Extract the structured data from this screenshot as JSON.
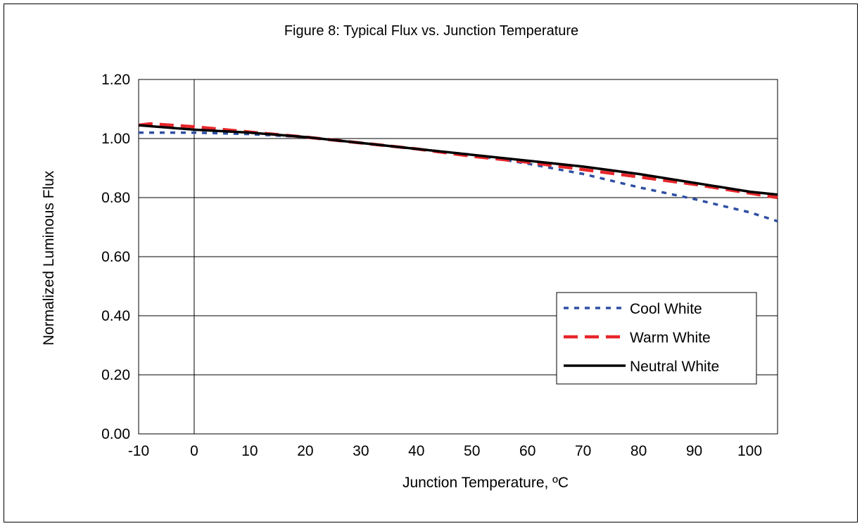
{
  "chart_data": {
    "type": "line",
    "title": "Figure 8:  Typical Flux vs. Junction Temperature",
    "xlabel": "Junction Temperature, ºC",
    "ylabel": "Normalized Luminous Flux",
    "xlim": [
      -10,
      105
    ],
    "ylim": [
      0,
      1.2
    ],
    "x_ticks": [
      "-10",
      "0",
      "10",
      "20",
      "30",
      "40",
      "50",
      "60",
      "70",
      "80",
      "90",
      "100"
    ],
    "y_ticks": [
      "0.00",
      "0.20",
      "0.40",
      "0.60",
      "0.80",
      "1.00",
      "1.20"
    ],
    "grid": "horizontal",
    "legend_position": "right",
    "series": [
      {
        "name": "Cool White",
        "color": "#2e4fa3",
        "style": "dotted",
        "x": [
          -10,
          0,
          10,
          20,
          30,
          40,
          50,
          60,
          70,
          80,
          90,
          100,
          105
        ],
        "y": [
          1.02,
          1.02,
          1.015,
          1.005,
          0.985,
          0.965,
          0.945,
          0.915,
          0.88,
          0.835,
          0.795,
          0.75,
          0.72
        ]
      },
      {
        "name": "Warm White",
        "color": "#e8262a",
        "style": "dashed",
        "x": [
          -10,
          -8,
          0,
          10,
          20,
          30,
          40,
          50,
          60,
          70,
          80,
          90,
          100,
          105
        ],
        "y": [
          1.045,
          1.05,
          1.04,
          1.022,
          1.005,
          0.985,
          0.965,
          0.94,
          0.92,
          0.895,
          0.87,
          0.845,
          0.815,
          0.8
        ]
      },
      {
        "name": "Neutral White",
        "color": "#000000",
        "style": "solid",
        "x": [
          -10,
          0,
          10,
          20,
          30,
          40,
          50,
          60,
          70,
          80,
          90,
          100,
          105
        ],
        "y": [
          1.045,
          1.03,
          1.02,
          1.005,
          0.985,
          0.965,
          0.945,
          0.925,
          0.905,
          0.88,
          0.85,
          0.82,
          0.81
        ]
      }
    ]
  }
}
